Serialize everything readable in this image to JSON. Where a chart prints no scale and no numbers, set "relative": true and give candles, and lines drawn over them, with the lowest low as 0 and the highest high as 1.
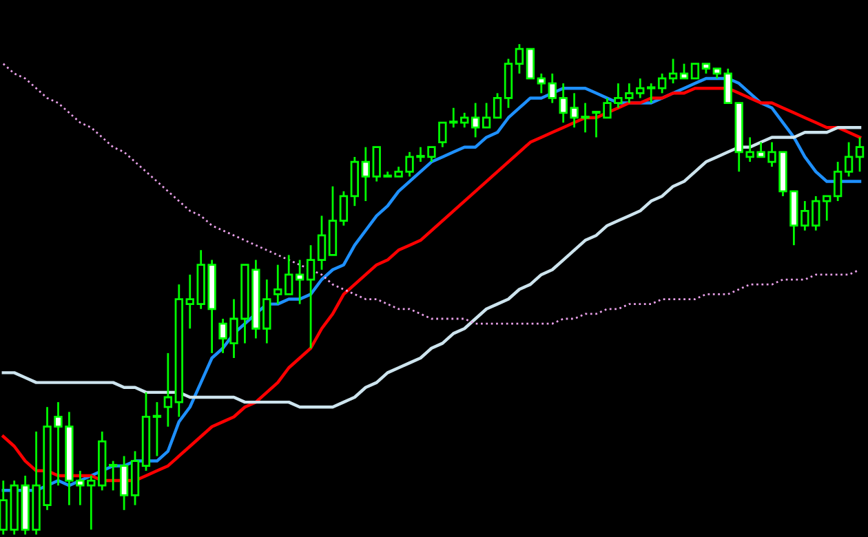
{
  "chart_data": {
    "type": "candlestick",
    "relative": true,
    "categories": [
      null,
      null,
      null,
      null,
      null,
      null,
      null,
      null,
      null,
      null,
      null,
      null,
      null,
      null,
      null,
      null,
      null,
      null,
      null,
      null,
      null,
      null,
      null,
      null,
      null,
      null,
      null,
      null,
      null,
      null,
      null,
      null,
      null,
      null,
      null,
      null,
      null,
      null,
      null,
      null,
      null,
      null,
      null,
      null,
      null,
      null,
      null,
      null,
      null,
      null,
      null,
      null,
      null,
      null,
      null,
      null,
      null,
      null,
      null,
      null,
      null,
      null,
      null,
      null,
      null,
      null,
      null,
      null,
      null,
      null,
      null,
      null,
      null,
      null,
      null,
      null,
      null,
      null,
      null
    ],
    "series": [
      {
        "color": "#00ff00",
        "ohlc": [
          [
            0.01,
            0.11,
            0,
            0.07
          ],
          [
            0.01,
            0.11,
            0,
            0.1
          ],
          [
            0.1,
            0.12,
            0,
            0.01
          ],
          [
            0.01,
            0.21,
            0,
            0.1
          ],
          [
            0.06,
            0.26,
            0.05,
            0.22
          ],
          [
            0.24,
            0.27,
            0.1,
            0.22
          ],
          [
            0.22,
            0.25,
            0.06,
            0.11
          ],
          [
            0.11,
            0.13,
            0.06,
            0.1
          ],
          [
            0.1,
            0.12,
            0.01,
            0.11
          ],
          [
            0.1,
            0.21,
            0.09,
            0.19
          ],
          [
            0.14,
            0.15,
            0.09,
            0.14
          ],
          [
            0.14,
            0.16,
            0.05,
            0.08
          ],
          [
            0.08,
            0.17,
            0.06,
            0.15
          ],
          [
            0.14,
            0.29,
            0.13,
            0.24
          ],
          [
            0.24,
            0.27,
            0.16,
            0.24
          ],
          [
            0.26,
            0.37,
            0.22,
            0.28
          ],
          [
            0.27,
            0.51,
            0.24,
            0.48
          ],
          [
            0.47,
            0.53,
            0.42,
            0.48
          ],
          [
            0.47,
            0.58,
            0.46,
            0.55
          ],
          [
            0.55,
            0.56,
            0.37,
            0.46
          ],
          [
            0.43,
            0.44,
            0.37,
            0.4
          ],
          [
            0.39,
            0.48,
            0.36,
            0.44
          ],
          [
            0.44,
            0.55,
            0.39,
            0.55
          ],
          [
            0.54,
            0.56,
            0.4,
            0.42
          ],
          [
            0.42,
            0.52,
            0.39,
            0.48
          ],
          [
            0.49,
            0.55,
            0.47,
            0.5
          ],
          [
            0.49,
            0.57,
            0.49,
            0.53
          ],
          [
            0.53,
            0.56,
            0.47,
            0.52
          ],
          [
            0.52,
            0.59,
            0.38,
            0.56
          ],
          [
            0.56,
            0.65,
            0.54,
            0.61
          ],
          [
            0.57,
            0.71,
            0.57,
            0.64
          ],
          [
            0.64,
            0.7,
            0.63,
            0.69
          ],
          [
            0.69,
            0.77,
            0.67,
            0.76
          ],
          [
            0.76,
            0.79,
            0.68,
            0.73
          ],
          [
            0.73,
            0.79,
            0.72,
            0.79
          ],
          [
            0.73,
            0.74,
            0.73,
            0.73
          ],
          [
            0.73,
            0.75,
            0.73,
            0.74
          ],
          [
            0.74,
            0.78,
            0.73,
            0.77
          ],
          [
            0.77,
            0.79,
            0.76,
            0.77
          ],
          [
            0.77,
            0.79,
            0.76,
            0.79
          ],
          [
            0.8,
            0.84,
            0.79,
            0.84
          ],
          [
            0.84,
            0.87,
            0.83,
            0.84
          ],
          [
            0.84,
            0.86,
            0.83,
            0.85
          ],
          [
            0.85,
            0.88,
            0.81,
            0.83
          ],
          [
            0.83,
            0.88,
            0.83,
            0.85
          ],
          [
            0.85,
            0.9,
            0.85,
            0.89
          ],
          [
            0.89,
            0.97,
            0.87,
            0.96
          ],
          [
            0.96,
            1,
            0.94,
            0.99
          ],
          [
            0.99,
            0.99,
            0.93,
            0.93
          ],
          [
            0.93,
            0.94,
            0.9,
            0.92
          ],
          [
            0.92,
            0.94,
            0.88,
            0.89
          ],
          [
            0.89,
            0.92,
            0.84,
            0.86
          ],
          [
            0.87,
            0.9,
            0.83,
            0.85
          ],
          [
            0.85,
            0.88,
            0.82,
            0.85
          ],
          [
            0.86,
            0.86,
            0.81,
            0.86
          ],
          [
            0.85,
            0.89,
            0.85,
            0.88
          ],
          [
            0.88,
            0.92,
            0.87,
            0.89
          ],
          [
            0.89,
            0.92,
            0.88,
            0.9
          ],
          [
            0.9,
            0.93,
            0.89,
            0.91
          ],
          [
            0.91,
            0.92,
            0.88,
            0.91
          ],
          [
            0.91,
            0.94,
            0.9,
            0.93
          ],
          [
            0.93,
            0.97,
            0.92,
            0.94
          ],
          [
            0.94,
            0.96,
            0.93,
            0.93
          ],
          [
            0.93,
            0.96,
            0.93,
            0.96
          ],
          [
            0.96,
            0.96,
            0.94,
            0.95
          ],
          [
            0.95,
            0.95,
            0.93,
            0.94
          ],
          [
            0.94,
            0.95,
            0.88,
            0.88
          ],
          [
            0.88,
            0.88,
            0.74,
            0.78
          ],
          [
            0.77,
            0.81,
            0.76,
            0.78
          ],
          [
            0.78,
            0.8,
            0.77,
            0.77
          ],
          [
            0.76,
            0.8,
            0.75,
            0.78
          ],
          [
            0.78,
            0.78,
            0.69,
            0.7
          ],
          [
            0.7,
            0.7,
            0.59,
            0.63
          ],
          [
            0.63,
            0.68,
            0.62,
            0.66
          ],
          [
            0.63,
            0.69,
            0.62,
            0.68
          ],
          [
            0.68,
            0.69,
            0.64,
            0.69
          ],
          [
            0.69,
            0.76,
            0.68,
            0.74
          ],
          [
            0.74,
            0.8,
            0.73,
            0.77
          ],
          [
            0.77,
            0.81,
            0.74,
            0.79
          ]
        ]
      },
      {
        "type": "line",
        "color": "#1e90ff",
        "line_style": "solid",
        "values": [
          0.09,
          0.09,
          0.09,
          0.09,
          0.1,
          0.11,
          0.1,
          0.11,
          0.12,
          0.13,
          0.14,
          0.14,
          0.15,
          0.15,
          0.15,
          0.17,
          0.23,
          0.26,
          0.31,
          0.36,
          0.38,
          0.41,
          0.43,
          0.45,
          0.47,
          0.47,
          0.48,
          0.48,
          0.49,
          0.52,
          0.54,
          0.55,
          0.59,
          0.62,
          0.65,
          0.67,
          0.7,
          0.72,
          0.74,
          0.76,
          0.77,
          0.78,
          0.79,
          0.79,
          0.81,
          0.82,
          0.85,
          0.87,
          0.89,
          0.89,
          0.9,
          0.91,
          0.91,
          0.91,
          0.9,
          0.89,
          0.88,
          0.88,
          0.88,
          0.88,
          0.89,
          0.9,
          0.91,
          0.92,
          0.93,
          0.93,
          0.93,
          0.92,
          0.9,
          0.88,
          0.87,
          0.84,
          0.81,
          0.77,
          0.74,
          0.72,
          0.72,
          0.72,
          0.72
        ]
      },
      {
        "type": "line",
        "color": "#ff0000",
        "line_style": "solid",
        "values": [
          0.2,
          0.18,
          0.15,
          0.13,
          0.13,
          0.12,
          0.12,
          0.12,
          0.12,
          0.11,
          0.11,
          0.11,
          0.11,
          0.12,
          0.13,
          0.14,
          0.16,
          0.18,
          0.2,
          0.22,
          0.23,
          0.24,
          0.26,
          0.27,
          0.29,
          0.31,
          0.34,
          0.36,
          0.38,
          0.42,
          0.45,
          0.49,
          0.51,
          0.53,
          0.55,
          0.56,
          0.58,
          0.59,
          0.6,
          0.62,
          0.64,
          0.66,
          0.68,
          0.7,
          0.72,
          0.74,
          0.76,
          0.78,
          0.8,
          0.81,
          0.82,
          0.83,
          0.84,
          0.85,
          0.85,
          0.86,
          0.87,
          0.88,
          0.88,
          0.89,
          0.89,
          0.9,
          0.9,
          0.91,
          0.91,
          0.91,
          0.91,
          0.9,
          0.89,
          0.88,
          0.88,
          0.87,
          0.86,
          0.85,
          0.84,
          0.83,
          0.83,
          0.82,
          0.81
        ]
      },
      {
        "type": "line",
        "color": "#cde4ee",
        "line_style": "solid",
        "values": [
          0.33,
          0.33,
          0.32,
          0.31,
          0.31,
          0.31,
          0.31,
          0.31,
          0.31,
          0.31,
          0.31,
          0.3,
          0.3,
          0.29,
          0.29,
          0.29,
          0.29,
          0.28,
          0.28,
          0.28,
          0.28,
          0.28,
          0.27,
          0.27,
          0.27,
          0.27,
          0.27,
          0.26,
          0.26,
          0.26,
          0.26,
          0.27,
          0.28,
          0.3,
          0.31,
          0.33,
          0.34,
          0.35,
          0.36,
          0.38,
          0.39,
          0.41,
          0.42,
          0.44,
          0.46,
          0.47,
          0.48,
          0.5,
          0.51,
          0.53,
          0.54,
          0.56,
          0.58,
          0.6,
          0.61,
          0.63,
          0.64,
          0.65,
          0.66,
          0.68,
          0.69,
          0.71,
          0.72,
          0.74,
          0.76,
          0.77,
          0.78,
          0.79,
          0.79,
          0.8,
          0.81,
          0.81,
          0.81,
          0.82,
          0.82,
          0.82,
          0.83,
          0.83,
          0.83
        ]
      },
      {
        "type": "line",
        "color": "#e8a0e8",
        "line_style": "dotted",
        "values": [
          0.96,
          0.94,
          0.93,
          0.91,
          0.89,
          0.88,
          0.86,
          0.84,
          0.83,
          0.81,
          0.79,
          0.78,
          0.76,
          0.74,
          0.72,
          0.7,
          0.68,
          0.66,
          0.65,
          0.63,
          0.62,
          0.61,
          0.6,
          0.59,
          0.58,
          0.57,
          0.56,
          0.55,
          0.54,
          0.53,
          0.51,
          0.5,
          0.49,
          0.48,
          0.48,
          0.47,
          0.46,
          0.46,
          0.45,
          0.44,
          0.44,
          0.44,
          0.44,
          0.43,
          0.43,
          0.43,
          0.43,
          0.43,
          0.43,
          0.43,
          0.43,
          0.44,
          0.44,
          0.45,
          0.45,
          0.46,
          0.46,
          0.47,
          0.47,
          0.47,
          0.48,
          0.48,
          0.48,
          0.48,
          0.49,
          0.49,
          0.49,
          0.5,
          0.51,
          0.51,
          0.51,
          0.52,
          0.52,
          0.52,
          0.53,
          0.53,
          0.53,
          0.53,
          0.54
        ]
      }
    ]
  }
}
